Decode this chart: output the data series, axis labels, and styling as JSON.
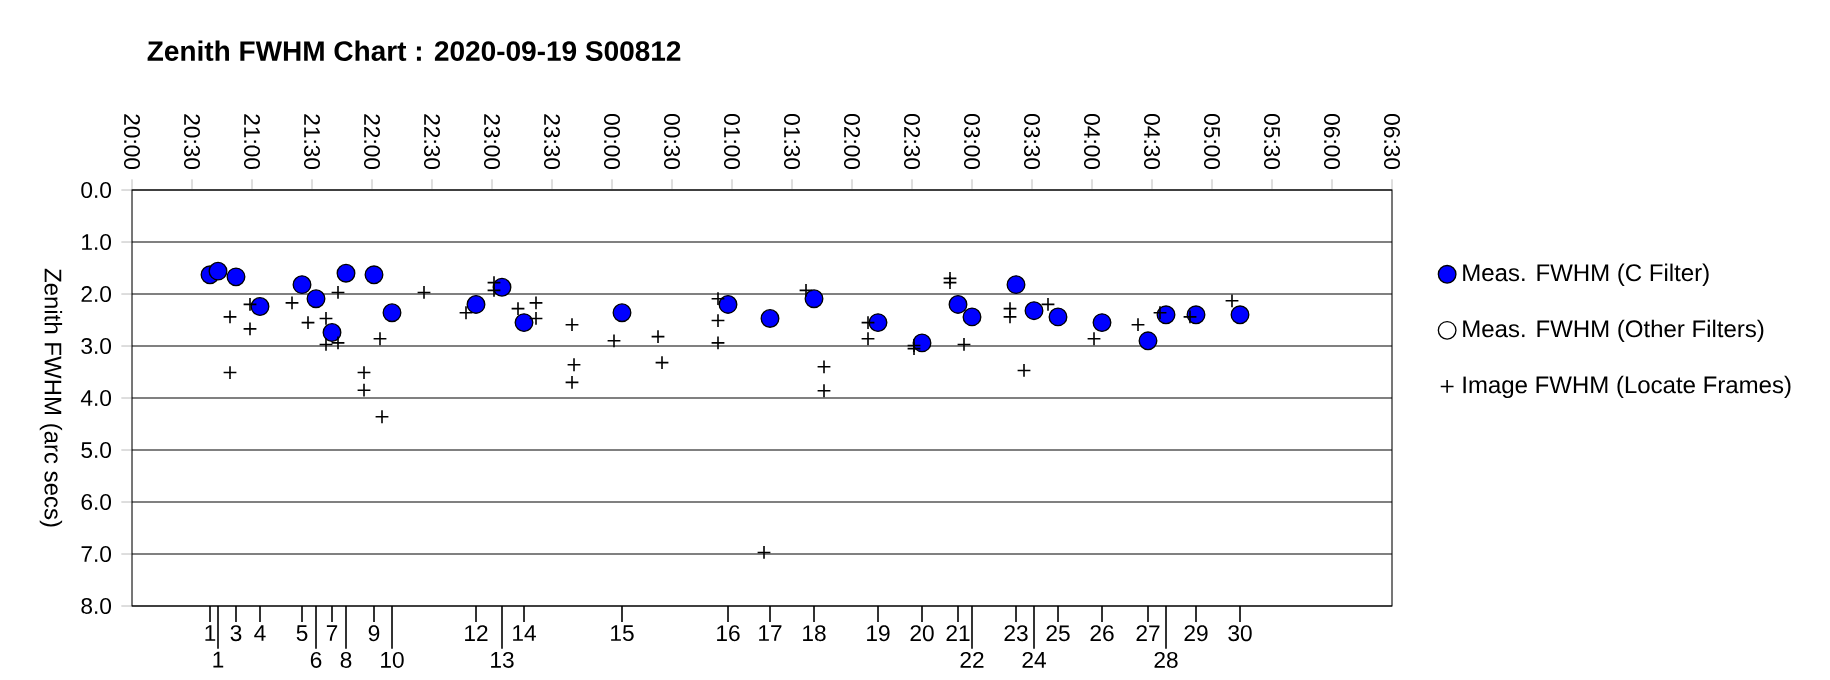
{
  "chart_data": {
    "type": "scatter",
    "title": "Zenith FWHM Chart : 2020-09-19 S00812",
    "ylabel": "Zenith FWHM (arc secs)",
    "xlim": [
      "2020-09-19T20:00",
      "2020-09-20T06:30"
    ],
    "xticks": [
      {
        "value": "2020-09-19T20:00",
        "label": "20:00"
      },
      {
        "value": "2020-09-19T20:30",
        "label": "20:30"
      },
      {
        "value": "2020-09-19T21:00",
        "label": "21:00"
      },
      {
        "value": "2020-09-19T21:30",
        "label": "21:30"
      },
      {
        "value": "2020-09-19T22:00",
        "label": "22:00"
      },
      {
        "value": "2020-09-19T22:30",
        "label": "22:30"
      },
      {
        "value": "2020-09-19T23:00",
        "label": "23:00"
      },
      {
        "value": "2020-09-19T23:30",
        "label": "23:30"
      },
      {
        "value": "2020-09-20T00:00",
        "label": "00:00"
      },
      {
        "value": "2020-09-20T00:30",
        "label": "00:30"
      },
      {
        "value": "2020-09-20T01:00",
        "label": "01:00"
      },
      {
        "value": "2020-09-20T01:30",
        "label": "01:30"
      },
      {
        "value": "2020-09-20T02:00",
        "label": "02:00"
      },
      {
        "value": "2020-09-20T02:30",
        "label": "02:30"
      },
      {
        "value": "2020-09-20T03:00",
        "label": "03:00"
      },
      {
        "value": "2020-09-20T03:30",
        "label": "03:30"
      },
      {
        "value": "2020-09-20T04:00",
        "label": "04:00"
      },
      {
        "value": "2020-09-20T04:30",
        "label": "04:30"
      },
      {
        "value": "2020-09-20T05:00",
        "label": "05:00"
      },
      {
        "value": "2020-09-20T05:30",
        "label": "05:30"
      },
      {
        "value": "2020-09-20T06:00",
        "label": "06:00"
      },
      {
        "value": "2020-09-20T06:30",
        "label": "06:30"
      }
    ],
    "ylim": [
      8,
      0
    ],
    "yticks": [
      {
        "value": 0,
        "label": "0.0"
      },
      {
        "value": 1,
        "label": "1.0"
      },
      {
        "value": 2,
        "label": "2.0"
      },
      {
        "value": 3,
        "label": "3.0"
      },
      {
        "value": 4,
        "label": "4.0"
      },
      {
        "value": 5,
        "label": "5.0"
      },
      {
        "value": 6,
        "label": "6.0"
      },
      {
        "value": 7,
        "label": "7.0"
      },
      {
        "value": 8,
        "label": "8.0"
      }
    ],
    "grid": "y",
    "legend": "right",
    "annotations": [
      "1",
      "1",
      "3",
      "4",
      "5",
      "6",
      "7",
      "8",
      "9",
      "10",
      "12",
      "13",
      "14",
      "15",
      "16",
      "17",
      "18",
      "19",
      "20",
      "21",
      "22",
      "23",
      "24",
      "25",
      "26",
      "27",
      "28",
      "29",
      "30"
    ],
    "series": [
      {
        "name": "Meas. FWHM (C Filter)",
        "color": "#0000ff",
        "marker": "circle",
        "x": [
          "2020-09-19T20:39",
          "2020-09-19T20:43",
          "2020-09-19T20:52",
          "2020-09-19T21:04",
          "2020-09-19T21:25",
          "2020-09-19T21:32",
          "2020-09-19T21:40",
          "2020-09-19T21:47",
          "2020-09-19T22:01",
          "2020-09-19T22:10",
          "2020-09-19T22:52",
          "2020-09-19T23:05",
          "2020-09-19T23:16",
          "2020-09-20T00:05",
          "2020-09-20T00:58",
          "2020-09-20T01:19",
          "2020-09-20T01:41",
          "2020-09-20T02:13",
          "2020-09-20T02:35",
          "2020-09-20T02:53",
          "2020-09-20T03:00",
          "2020-09-20T03:22",
          "2020-09-20T03:31",
          "2020-09-20T03:43",
          "2020-09-20T04:05",
          "2020-09-20T04:28",
          "2020-09-20T04:37",
          "2020-09-20T04:52",
          "2020-09-20T05:14"
        ],
        "values": [
          1.63,
          1.56,
          1.67,
          2.24,
          1.82,
          2.09,
          2.74,
          1.6,
          1.63,
          2.36,
          2.2,
          1.87,
          2.55,
          2.36,
          2.2,
          2.47,
          2.09,
          2.55,
          2.94,
          2.2,
          2.44,
          1.82,
          2.32,
          2.44,
          2.55,
          2.9,
          2.4,
          2.4,
          2.4
        ]
      },
      {
        "name": "Meas. FWHM (Other Filters)",
        "color": "#ffffff",
        "marker": "circle"
      },
      {
        "name": "Image FWHM (Locate Frames)",
        "color": "#000000",
        "marker": "cross",
        "x": [
          "2020-09-19T20:49",
          "2020-09-19T20:49",
          "2020-09-19T20:59",
          "2020-09-19T20:59",
          "2020-09-19T21:20",
          "2020-09-19T21:28",
          "2020-09-19T21:37",
          "2020-09-19T21:37",
          "2020-09-19T21:43",
          "2020-09-19T21:43",
          "2020-09-19T21:56",
          "2020-09-19T21:56",
          "2020-09-19T22:04",
          "2020-09-19T22:05",
          "2020-09-19T22:26",
          "2020-09-19T22:47",
          "2020-09-19T23:01",
          "2020-09-19T23:01",
          "2020-09-19T23:13",
          "2020-09-19T23:22",
          "2020-09-19T23:22",
          "2020-09-19T23:40",
          "2020-09-19T23:41",
          "2020-09-19T23:40",
          "2020-09-20T00:01",
          "2020-09-20T00:23",
          "2020-09-20T00:25",
          "2020-09-20T00:53",
          "2020-09-20T00:53",
          "2020-09-20T00:53",
          "2020-09-20T01:16",
          "2020-09-20T01:37",
          "2020-09-20T01:46",
          "2020-09-20T01:46",
          "2020-09-20T02:08",
          "2020-09-20T02:08",
          "2020-09-20T02:31",
          "2020-09-20T02:31",
          "2020-09-20T02:49",
          "2020-09-20T02:49",
          "2020-09-20T02:56",
          "2020-09-20T03:19",
          "2020-09-20T03:19",
          "2020-09-20T03:26",
          "2020-09-20T03:38",
          "2020-09-20T04:01",
          "2020-09-20T04:23",
          "2020-09-20T04:34",
          "2020-09-20T04:49",
          "2020-09-20T05:10"
        ],
        "values": [
          2.44,
          3.51,
          2.2,
          2.67,
          2.17,
          2.55,
          2.47,
          2.97,
          1.97,
          2.94,
          3.51,
          3.85,
          2.86,
          4.36,
          1.97,
          2.36,
          1.78,
          1.93,
          2.28,
          2.17,
          2.47,
          2.59,
          3.36,
          3.7,
          2.9,
          2.82,
          3.32,
          2.09,
          2.51,
          2.94,
          6.97,
          1.93,
          3.4,
          3.86,
          2.55,
          2.86,
          3.05,
          2.99,
          1.78,
          1.7,
          2.97,
          2.28,
          2.44,
          3.47,
          2.2,
          2.86,
          2.59,
          2.36,
          2.44,
          2.13
        ]
      }
    ]
  }
}
